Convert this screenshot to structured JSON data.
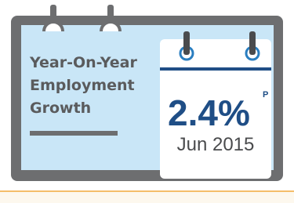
{
  "widget": {
    "title_lines": [
      "Year-On-Year",
      "Employment",
      "Growth"
    ],
    "value": "2.4%",
    "flag": "P",
    "date": "Jun 2015"
  }
}
